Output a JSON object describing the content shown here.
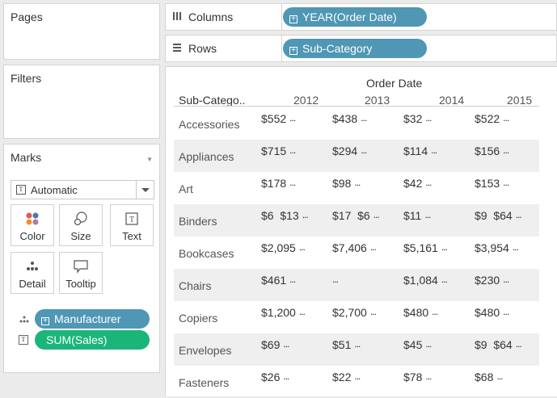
{
  "pages": {
    "title": "Pages"
  },
  "filters": {
    "title": "Filters"
  },
  "marks": {
    "title": "Marks",
    "type": "Automatic",
    "buttons": [
      "Color",
      "Size",
      "Text",
      "Detail",
      "Tooltip"
    ],
    "fields": [
      {
        "label": "Manufacturer",
        "icon": "detail-icon",
        "color": "#4f97b4"
      },
      {
        "label": "SUM(Sales)",
        "icon": "text-icon",
        "color": "#1bb57a"
      }
    ]
  },
  "shelves": {
    "columns": {
      "label": "Columns",
      "pill": "YEAR(Order Date)"
    },
    "rows": {
      "label": "Rows",
      "pill": "Sub-Category"
    }
  },
  "view": {
    "column_header": "Order Date",
    "row_header": "Sub-Catego..",
    "years": [
      "2012",
      "2013",
      "2014",
      "2015"
    ],
    "rows": [
      {
        "category": "Accessories",
        "cells": [
          [
            "$552",
            "..."
          ],
          [
            "$438",
            "..."
          ],
          [
            "$32",
            "..."
          ],
          [
            "$522",
            "..."
          ]
        ]
      },
      {
        "category": "Appliances",
        "cells": [
          [
            "$715",
            "..."
          ],
          [
            "$294",
            "..."
          ],
          [
            "$114",
            "..."
          ],
          [
            "$156",
            "..."
          ]
        ]
      },
      {
        "category": "Art",
        "cells": [
          [
            "$178",
            "..."
          ],
          [
            "$98",
            "..."
          ],
          [
            "$42",
            "..."
          ],
          [
            "$153",
            "..."
          ]
        ]
      },
      {
        "category": "Binders",
        "cells": [
          [
            "$6  $13",
            "..."
          ],
          [
            "$17  $6",
            "..."
          ],
          [
            "$11",
            "..."
          ],
          [
            "$9  $64",
            "..."
          ]
        ]
      },
      {
        "category": "Bookcases",
        "cells": [
          [
            "$2,095",
            "..."
          ],
          [
            "$7,406",
            "..."
          ],
          [
            "$5,161",
            "..."
          ],
          [
            "$3,954",
            "..."
          ]
        ]
      },
      {
        "category": "Chairs",
        "cells": [
          [
            "$461",
            "..."
          ],
          [
            "",
            "..."
          ],
          [
            "$1,084",
            "..."
          ],
          [
            "$230",
            "..."
          ]
        ]
      },
      {
        "category": "Copiers",
        "cells": [
          [
            "$1,200",
            "..."
          ],
          [
            "$2,700",
            "..."
          ],
          [
            "$480",
            "..."
          ],
          [
            "$480",
            "..."
          ]
        ]
      },
      {
        "category": "Envelopes",
        "cells": [
          [
            "$69",
            "..."
          ],
          [
            "$51",
            "..."
          ],
          [
            "$45",
            "..."
          ],
          [
            "$9  $64",
            "..."
          ]
        ]
      },
      {
        "category": "Fasteners",
        "cells": [
          [
            "$26",
            "..."
          ],
          [
            "$22",
            "..."
          ],
          [
            "$78",
            "..."
          ],
          [
            "$68",
            "..."
          ]
        ]
      }
    ]
  }
}
